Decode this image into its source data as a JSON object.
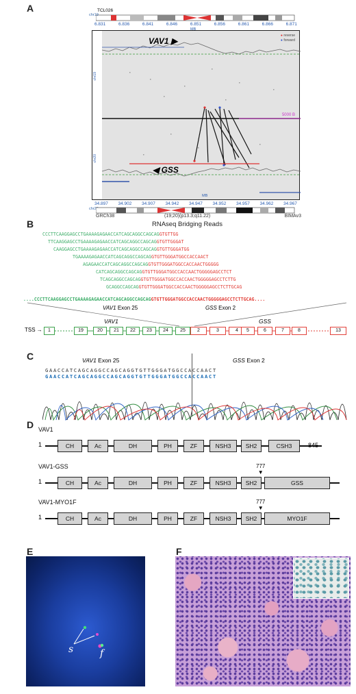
{
  "panels": {
    "A": "A",
    "B": "B",
    "C": "C",
    "D": "D",
    "E": "E",
    "F": "F"
  },
  "panelA": {
    "top_sample": "TCL026",
    "top_chr": "chr19",
    "top_ticks": [
      "6.831",
      "6.836",
      "6.841",
      "6.846",
      "6.851",
      "6.856",
      "6.861",
      "6.866",
      "6.871"
    ],
    "top_unit": "MB",
    "legend_1": "reverse",
    "legend_2": "forward",
    "gene_top": "VAV1",
    "scale_label": "5000 B",
    "left_top": "chr19",
    "left_bottom": "chr20",
    "gene_bottom": "GSS",
    "bottom_unit": "MB",
    "bottom_ticks": [
      "34.897",
      "34.902",
      "34.907",
      "34.942",
      "34.947",
      "34.952",
      "34.957",
      "34.962",
      "34.967"
    ],
    "bottom_chr": "chr20",
    "footer_left": "GRCh38",
    "footer_center": "(19;20)(p13.3;q11.22)",
    "footer_right": "BIMAv3"
  },
  "panelB": {
    "title": "RNAseq Bridging Reads",
    "reads": [
      {
        "green": "CCCTTCAAGGAGCCTGAAAAGAGAACCATCAGCAGGCCAGCAG",
        "red": "GTGTTGG"
      },
      {
        "green": "TTCAAGGAGCCTGAAAAGAGAACCATCAGCAGGCCAGCAG",
        "red": "GTGTTGGGAT"
      },
      {
        "green": "CAAGGAGCCTGAAAAGAGAACCATCAGCAGGCCAGCAG",
        "red": "GTGTTGGGATGG"
      },
      {
        "green": "TGAAAAGAGAACCATCAGCAGGCCAGCAG",
        "red": "GTGTTGGGATGGCCACCAACT"
      },
      {
        "green": "AGAGAACCATCAGCAGGCCAGCAG",
        "red": "GTGTTGGGATGGCCACCAACTGGGGG"
      },
      {
        "green": "CATCAGCAGGCCAGCAG",
        "red": "GTGTTGGGATGGCCACCAACTGGGGGAGCCTCT"
      },
      {
        "green": "TCAGCAGGCCAGCAG",
        "red": "GTGTTGGGATGGCCACCAACTGGGGGAGCCTCTTG"
      },
      {
        "green": "GCAGGCCAGCAG",
        "red": "GTGTTGGGATGGCCACCAACTGGGGGAGCCTCTTGCAG"
      }
    ],
    "consensus_green": "....CCCTTCAAGGAGCCTGAAAAGAGAACCATCAGCAGGCCAGCAG",
    "consensus_red": "GTGTTGGGATGGCCACCAACTGGGGGAGCCTCTTGCAG....",
    "label_left": "VAV1 Exon 25",
    "label_right": "GSS Exon 2",
    "gene_left": "VAV1",
    "gene_right": "GSS",
    "tss": "TSS",
    "green_exons": [
      "1",
      "19",
      "20",
      "21",
      "22",
      "23",
      "24",
      "25"
    ],
    "red_exons": [
      "2",
      "3",
      "4",
      "5",
      "6",
      "7",
      "8",
      "13"
    ]
  },
  "panelC": {
    "label_left": "VAV1 Exon 25",
    "label_right": "GSS Exon 2",
    "seq_top": "GAACCATCAGCAGGCCAGCAGGTGTTGGGATGGCCACCAACT",
    "seq_bottom": "GAACCATCAGCAGGCCAGCAGGTGTTGGGATGGCCACCAACT"
  },
  "panelD": {
    "rows": [
      {
        "title": "VAV1",
        "start": "1",
        "end": "845",
        "marker": "",
        "domains": [
          "CH",
          "Ac",
          "DH",
          "PH",
          "ZF",
          "NSH3",
          "SH2",
          "CSH3"
        ]
      },
      {
        "title": "VAV1-GSS",
        "start": "1",
        "end": "",
        "marker": "777",
        "domains": [
          "CH",
          "Ac",
          "DH",
          "PH",
          "ZF",
          "NSH3",
          "SH2",
          "GSS"
        ]
      },
      {
        "title": "VAV1-MYO1F",
        "start": "1",
        "end": "",
        "marker": "777",
        "domains": [
          "CH",
          "Ac",
          "DH",
          "PH",
          "ZF",
          "NSH3",
          "SH2",
          "MYO1F"
        ]
      }
    ]
  },
  "panelE": {
    "label_s": "s",
    "label_f": "f"
  },
  "colors": {
    "green": "#3fae6a",
    "red": "#e2413a",
    "fish_bg": "#1c3f9c",
    "he_bg": "#c69ed6"
  }
}
